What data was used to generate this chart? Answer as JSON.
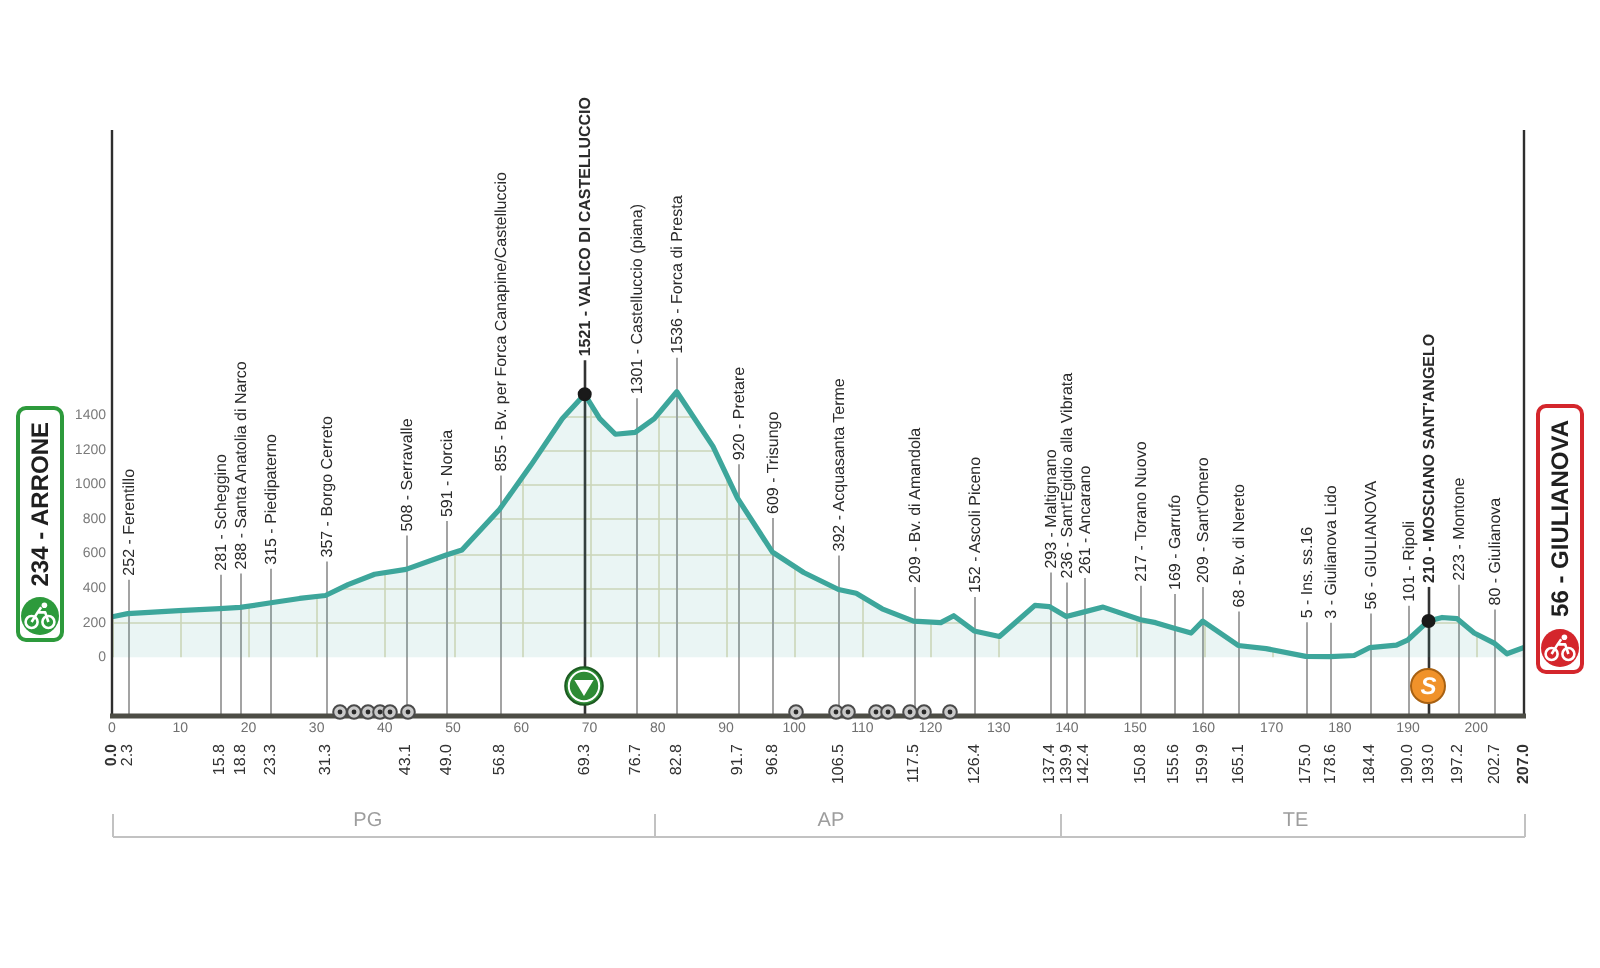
{
  "chart_data": {
    "type": "area",
    "series": [
      {
        "color": "#3da69b",
        "x": [
          0,
          2.3,
          9.8,
          15.8,
          18.8,
          23.3,
          27.5,
          31.3,
          34.6,
          38.5,
          43.1,
          49.0,
          51.3,
          56.8,
          61.4,
          66.0,
          69.3,
          71.5,
          73.8,
          76.7,
          79.5,
          82.8,
          88.1,
          91.7,
          96.8,
          101.4,
          106.5,
          109.1,
          112.9,
          117.5,
          121.5,
          123.4,
          126.4,
          130.1,
          135.3,
          137.4,
          139.9,
          142.4,
          145.3,
          150.8,
          153.0,
          155.6,
          158.2,
          159.9,
          165.1,
          169.2,
          175.0,
          178.6,
          182.1,
          184.4,
          188.3,
          190.0,
          193.0,
          195.0,
          197.2,
          199.7,
          202.7,
          204.5,
          207.0
        ],
        "values": [
          234,
          252,
          270,
          281,
          288,
          315,
          340,
          357,
          420,
          480,
          508,
          591,
          620,
          855,
          1110,
          1380,
          1521,
          1380,
          1290,
          1301,
          1380,
          1536,
          1220,
          920,
          609,
          490,
          392,
          370,
          280,
          209,
          200,
          240,
          152,
          120,
          300,
          293,
          236,
          261,
          290,
          217,
          200,
          169,
          140,
          209,
          68,
          50,
          5,
          3,
          10,
          56,
          70,
          101,
          210,
          230,
          223,
          140,
          80,
          20,
          56
        ]
      },
      {
        "type": "scatter",
        "color": "#1a1a1a",
        "marker": "circle",
        "x": [
          69.3,
          193.0
        ],
        "values": [
          1521,
          210
        ]
      }
    ],
    "xlim": [
      0,
      207
    ],
    "xticks": [
      0,
      10,
      20,
      30,
      40,
      50,
      60,
      70,
      80,
      90,
      100,
      110,
      120,
      130,
      140,
      150,
      160,
      170,
      180,
      190,
      200
    ],
    "x2lim": [
      0,
      207
    ],
    "x2ticks": [
      {
        "value": 0,
        "label": "0.0"
      },
      2.3,
      15.8,
      18.8,
      23.3,
      31.3,
      43.1,
      {
        "value": 49,
        "label": "49.0"
      },
      56.8,
      69.3,
      76.7,
      82.8,
      91.7,
      96.8,
      106.5,
      117.5,
      126.4,
      137.4,
      139.9,
      142.4,
      150.8,
      155.6,
      159.9,
      165.1,
      {
        "value": 175,
        "label": "175.0"
      },
      178.6,
      184.4,
      {
        "value": 190,
        "label": "190.0"
      },
      {
        "value": 193,
        "label": "193.0"
      },
      197.2,
      202.7,
      {
        "value": 207,
        "label": "207.0"
      }
    ],
    "ylim": [
      -340,
      3050
    ],
    "yticks": [
      0,
      200,
      400,
      600,
      800,
      1000,
      1200,
      1400
    ],
    "grid": true,
    "ref_lines": [
      {
        "axis": "x",
        "value": 2.3,
        "label": "252 - Ferentillo"
      },
      {
        "axis": "x",
        "value": 15.8,
        "label": "281 - Scheggino"
      },
      {
        "axis": "x",
        "value": 18.8,
        "label": "288 - Santa Anatolia di Narco"
      },
      {
        "axis": "x",
        "value": 23.3,
        "label": "315 - Piedipaterno"
      },
      {
        "axis": "x",
        "value": 31.3,
        "label": "357 - Borgo Cerreto"
      },
      {
        "axis": "x",
        "value": 43.1,
        "label": "508 - Serravalle"
      },
      {
        "axis": "x",
        "value": 49.0,
        "label": "591 - Norcia"
      },
      {
        "axis": "x",
        "value": 56.8,
        "label": "855 - Bv. per Forca Canapine/Castelluccio"
      },
      {
        "axis": "x",
        "value": 69.3,
        "label": "1521 - VALICO DI CASTELLUCCIO",
        "color": "#333333"
      },
      {
        "axis": "x",
        "value": 76.7,
        "label": "1301 - Castelluccio (piana)"
      },
      {
        "axis": "x",
        "value": 82.8,
        "label": "1536 - Forca di Presta"
      },
      {
        "axis": "x",
        "value": 91.7,
        "label": "920 - Pretare"
      },
      {
        "axis": "x",
        "value": 96.8,
        "label": "609 - Trisungo"
      },
      {
        "axis": "x",
        "value": 106.5,
        "label": "392 - Acquasanta Terme"
      },
      {
        "axis": "x",
        "value": 117.5,
        "label": "209 - Bv. di Amandola"
      },
      {
        "axis": "x",
        "value": 126.4,
        "label": "152 - Ascoli Piceno"
      },
      {
        "axis": "x",
        "value": 137.4,
        "label": "293 - Maltignano"
      },
      {
        "axis": "x",
        "value": 139.9,
        "label": "236 - Sant'Egidio alla Vibrata"
      },
      {
        "axis": "x",
        "value": 142.4,
        "label": "261 - Ancarano"
      },
      {
        "axis": "x",
        "value": 150.8,
        "label": "217 - Torano Nuovo"
      },
      {
        "axis": "x",
        "value": 155.6,
        "label": "169 - Garrufo"
      },
      {
        "axis": "x",
        "value": 159.9,
        "label": "209 - Sant'Omero"
      },
      {
        "axis": "x",
        "value": 165.1,
        "label": "68 - Bv. di Nereto"
      },
      {
        "axis": "x",
        "value": 175.0,
        "label": "5 - Ins. ss.16"
      },
      {
        "axis": "x",
        "value": 178.6,
        "label": "3 - Giulianova Lido"
      },
      {
        "axis": "x",
        "value": 184.4,
        "label": "56 - GIULIANOVA"
      },
      {
        "axis": "x",
        "value": 190.0,
        "label": "101 - Ripoli"
      },
      {
        "axis": "x",
        "value": 193.0,
        "label": "210 - MOSCIANO SANT'ANGELO",
        "color": "#333333"
      },
      {
        "axis": "x",
        "value": 197.2,
        "label": "223 - Montone"
      },
      {
        "axis": "x",
        "value": 202.7,
        "label": "80 - Giulianova"
      }
    ],
    "annotations": [
      {
        "text": "234 - ARRONE",
        "x": 0,
        "y": 234
      },
      {
        "text": "56 - GIULIANOVA",
        "x": 207,
        "y": 56
      },
      {
        "text": "S",
        "x": 193,
        "y": 210
      },
      "PG",
      "AP",
      "TE"
    ]
  }
}
